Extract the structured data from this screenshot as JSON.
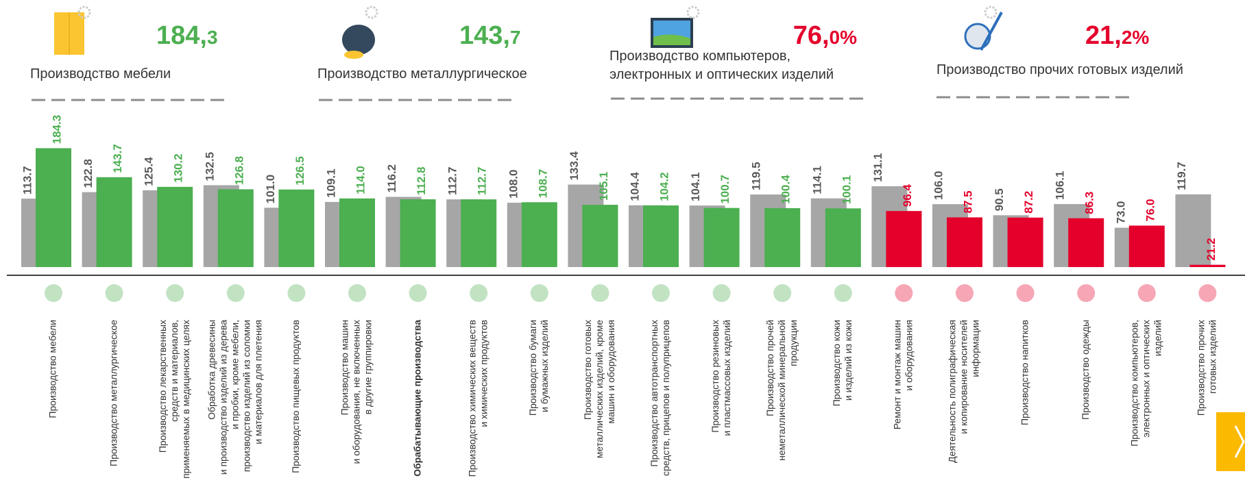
{
  "highlights": [
    {
      "icon": "furniture",
      "number_big": "184,",
      "number_small": "3",
      "color": "#4caf50",
      "label": [
        "Производство мебели"
      ]
    },
    {
      "icon": "metal",
      "number_big": "143,",
      "number_small": "7",
      "color": "#4caf50",
      "label": [
        "Производство металлургическое"
      ]
    },
    {
      "icon": "computer",
      "number_big": "76,",
      "number_small": "0%",
      "color": "#e4002b",
      "label": [
        "Производство компьютеров,",
        "электронных и оптических изделий"
      ]
    },
    {
      "icon": "other",
      "number_big": "21,",
      "number_small": "2%",
      "color": "#e4002b",
      "label": [
        "Производство прочих готовых изделий"
      ]
    }
  ],
  "chart_data": {
    "type": "bar",
    "categories": [
      [
        "Производство мебели"
      ],
      [
        "Производство металлургическое"
      ],
      [
        "Производство лекарственных",
        "средств и материалов,",
        "применяемых в медицинских целях"
      ],
      [
        "Обработка древесины",
        "и производство изделий из дерева",
        "и пробки, кроме мебели,",
        "производство изделий из соломки",
        "и материалов для плетения"
      ],
      [
        "Производство пищевых продуктов"
      ],
      [
        "Производство машин",
        "и оборудования, не включенных",
        "в другие группировки"
      ],
      [
        "Обрабатывающие производства"
      ],
      [
        "Производство химических веществ",
        "и химических продуктов"
      ],
      [
        "Производство бумаги",
        "и бумажных изделий"
      ],
      [
        "Производство готовых",
        "металлических изделий, кроме",
        "машин и оборудования"
      ],
      [
        "Производство автотранспортных",
        "средств, прицепов и полуприцепов"
      ],
      [
        "Производство резиновых",
        "и пластмассовых изделий"
      ],
      [
        "Производство прочей",
        "неметаллической минеральной",
        "продукции"
      ],
      [
        "Производство кожи",
        "и изделий из кожи"
      ],
      [
        "Ремонт и монтаж машин",
        "и оборудования"
      ],
      [
        "Деятельность полиграфическая",
        "и копирование носителей",
        "информации"
      ],
      [
        "Производство напитков"
      ],
      [
        "Производство одежды"
      ],
      [
        "Производство компьютеров,",
        "электронных и оптических",
        "изделий"
      ],
      [
        "Производство прочих",
        "готовых изделий"
      ]
    ],
    "series": [
      {
        "color": "#a6a6a6",
        "label_color": "#595959",
        "values": [
          113.7,
          122.8,
          125.4,
          132.5,
          101.0,
          109.1,
          116.2,
          112.7,
          108.0,
          133.4,
          104.4,
          104.1,
          119.5,
          114.1,
          131.1,
          106.0,
          90.5,
          106.1,
          73.0,
          119.7
        ],
        "value_labels": [
          "113.7",
          "122.8",
          "125.4",
          "132.5",
          "101.0",
          "109.1",
          "116.2",
          "112.7",
          "108.0",
          "133.4",
          "104.4",
          "104.1",
          "119.5",
          "114.1",
          "131.1",
          "106.0",
          "90.5",
          "106.1",
          "73.0",
          "119.7"
        ]
      },
      {
        "colors": [
          "#4caf50",
          "#4caf50",
          "#4caf50",
          "#4caf50",
          "#4caf50",
          "#4caf50",
          "#4caf50",
          "#4caf50",
          "#4caf50",
          "#4caf50",
          "#4caf50",
          "#4caf50",
          "#4caf50",
          "#4caf50",
          "#e4002b",
          "#e4002b",
          "#e4002b",
          "#e4002b",
          "#e4002b",
          "#e4002b"
        ],
        "values": [
          184.3,
          143.7,
          130.2,
          126.8,
          126.5,
          114.0,
          112.8,
          112.7,
          108.7,
          105.1,
          104.2,
          100.7,
          100.4,
          100.1,
          96.4,
          87.5,
          87.2,
          86.3,
          76.0,
          21.2
        ],
        "value_labels": [
          "184.3",
          "143.7",
          "130.2",
          "126.8",
          "126.5",
          "114.0",
          "112.8",
          "112.7",
          "108.7",
          "105.1",
          "104.2",
          "100.7",
          "100.4",
          "100.1",
          "96.4",
          "87.5",
          "87.2",
          "86.3",
          "76.0",
          "21.2"
        ]
      }
    ],
    "ylim": [
      18,
      200
    ]
  }
}
